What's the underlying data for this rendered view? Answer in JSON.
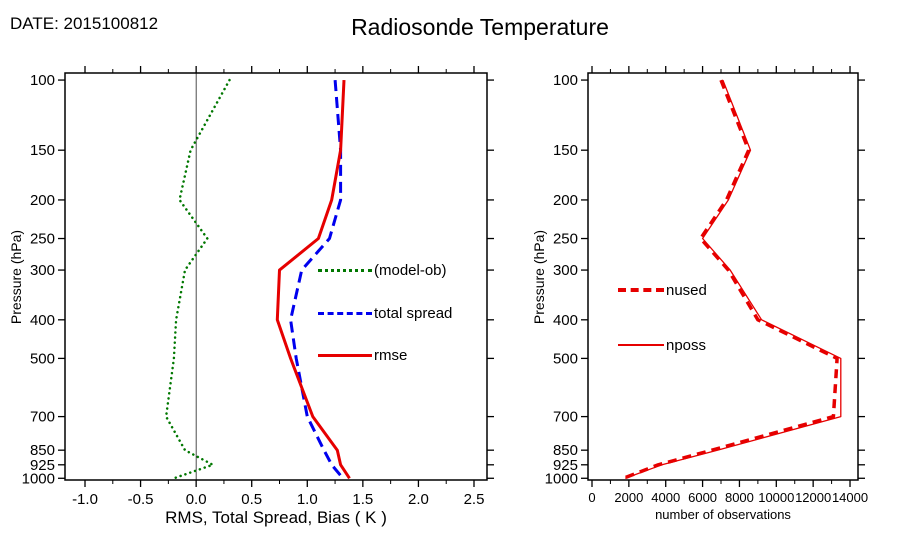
{
  "header": {
    "date_label": "DATE: 2015100812",
    "title": "Radiosonde Temperature"
  },
  "chart_data": [
    {
      "type": "line",
      "panel": "left",
      "title": "Radiosonde Temperature",
      "xlabel": "RMS, Total Spread, Bias ( K )",
      "ylabel": "Pressure (hPa)",
      "grid": false,
      "legend_position": "inside-right",
      "zero_line": 0.0,
      "y_axis": {
        "scale": "log",
        "inverted": true,
        "unit": "hPa",
        "ticks": [
          100,
          150,
          200,
          250,
          300,
          400,
          500,
          700,
          850,
          925,
          1000
        ],
        "tick_labels": [
          "100",
          "150",
          "200",
          "250",
          "300",
          "400",
          "500",
          "700",
          "850",
          "925",
          "1000"
        ],
        "range": [
          96,
          1010
        ]
      },
      "x_axis": {
        "ticks": [
          -1.0,
          -0.5,
          0.0,
          0.5,
          1.0,
          1.5,
          2.0,
          2.5
        ],
        "tick_labels": [
          "-1.0",
          "-0.5",
          "0.0",
          "0.5",
          "1.0",
          "1.5",
          "2.0",
          "2.5"
        ],
        "range": [
          -1.18,
          2.617
        ],
        "minor_step": 0.25
      },
      "pressure_levels": [
        100,
        150,
        200,
        250,
        300,
        400,
        500,
        700,
        850,
        925,
        1000
      ],
      "series": [
        {
          "name": "(model-ob)",
          "color": "#007700",
          "style": "dotted",
          "width": 2.5,
          "values": [
            0.3,
            -0.05,
            -0.15,
            0.1,
            -0.1,
            -0.18,
            -0.2,
            -0.27,
            -0.1,
            0.15,
            -0.2
          ]
        },
        {
          "name": "total spread",
          "color": "#0000ee",
          "style": "dashed",
          "width": 3,
          "values": [
            1.25,
            1.3,
            1.3,
            1.2,
            0.95,
            0.85,
            0.9,
            1.0,
            1.15,
            1.22,
            1.32
          ]
        },
        {
          "name": "rmse",
          "color": "#e60000",
          "style": "solid",
          "width": 3,
          "values": [
            1.33,
            1.3,
            1.22,
            1.1,
            0.75,
            0.73,
            0.85,
            1.05,
            1.27,
            1.3,
            1.38
          ]
        }
      ]
    },
    {
      "type": "line",
      "panel": "right",
      "title": "",
      "xlabel": "number of observations",
      "ylabel": "Pressure (hPa)",
      "grid": false,
      "legend_position": "inside-left",
      "zero_line": null,
      "y_axis": {
        "scale": "log",
        "inverted": true,
        "unit": "hPa",
        "ticks": [
          100,
          150,
          200,
          250,
          300,
          400,
          500,
          700,
          850,
          925,
          1000
        ],
        "tick_labels": [
          "100",
          "150",
          "200",
          "250",
          "300",
          "400",
          "500",
          "700",
          "850",
          "925",
          "1000"
        ],
        "range": [
          96,
          1010
        ]
      },
      "x_axis": {
        "ticks": [
          0,
          2000,
          4000,
          6000,
          8000,
          10000,
          12000,
          14000
        ],
        "tick_labels": [
          "0",
          "2000",
          "4000",
          "6000",
          "8000",
          "10000",
          "12000",
          "14000"
        ],
        "range": [
          -217,
          14433
        ],
        "minor_step": 1000
      },
      "pressure_levels": [
        100,
        150,
        200,
        250,
        300,
        400,
        500,
        700,
        850,
        925,
        1000
      ],
      "series": [
        {
          "name": "nused",
          "color": "#e60000",
          "style": "dashed-thick",
          "width": 3.5,
          "values": [
            7000,
            8500,
            7300,
            5900,
            7400,
            9000,
            13300,
            13100,
            6500,
            3600,
            1700
          ]
        },
        {
          "name": "nposs",
          "color": "#e60000",
          "style": "solid",
          "width": 1.3,
          "values": [
            7100,
            8600,
            7400,
            6000,
            7500,
            9200,
            13500,
            13500,
            6800,
            3800,
            1800
          ]
        }
      ]
    }
  ]
}
